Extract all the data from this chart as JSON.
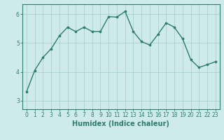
{
  "x": [
    0,
    1,
    2,
    3,
    4,
    5,
    6,
    7,
    8,
    9,
    10,
    11,
    12,
    13,
    14,
    15,
    16,
    17,
    18,
    19,
    20,
    21,
    22,
    23
  ],
  "y": [
    3.3,
    4.05,
    4.5,
    4.8,
    5.25,
    5.55,
    5.4,
    5.55,
    5.4,
    5.4,
    5.92,
    5.9,
    6.1,
    5.4,
    5.05,
    4.93,
    5.3,
    5.7,
    5.55,
    5.15,
    4.42,
    4.15,
    4.25,
    4.35
  ],
  "line_color": "#2e7d6e",
  "marker": "o",
  "markersize": 2.2,
  "linewidth": 1.0,
  "bg_color": "#ceeaea",
  "grid_color": "#aad0d0",
  "xlabel": "Humidex (Indice chaleur)",
  "ylabel": "",
  "title": "",
  "xlim": [
    -0.5,
    23.5
  ],
  "ylim": [
    2.7,
    6.35
  ],
  "xticks": [
    0,
    1,
    2,
    3,
    4,
    5,
    6,
    7,
    8,
    9,
    10,
    11,
    12,
    13,
    14,
    15,
    16,
    17,
    18,
    19,
    20,
    21,
    22,
    23
  ],
  "yticks": [
    3,
    4,
    5,
    6
  ],
  "tick_fontsize": 5.5,
  "xlabel_fontsize": 7.0
}
